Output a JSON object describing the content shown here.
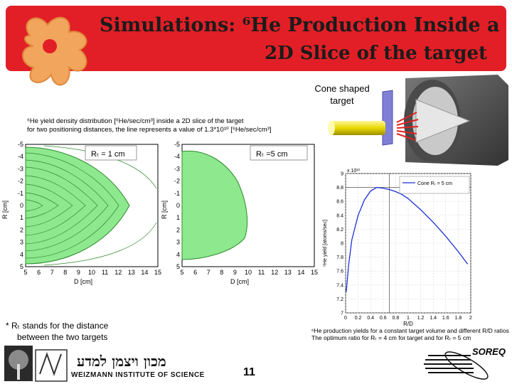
{
  "slide": {
    "title_line1": "Simulations: ⁶He Production Inside a",
    "title_line2": "2D Slice of the target",
    "cone_label": "Cone shaped target",
    "caption_line1": "⁶He yield density distribution [⁶He/sec/cm³] inside a 2D slice of the target",
    "caption_line2": "for two positioning distances, the line represents a value of 1.3*10¹⁰ [⁶He/sec/cm³]",
    "footnote_line1": "* Rₜ stands for the distance",
    "footnote_line2": "between the two targets",
    "right_caption_line1": "⁶He production yields for a constant target volume and different R/D ratios",
    "right_caption_line2": "The optimum ratio for Rₜ = 4 cm for target and for Rₜ = 5 cm",
    "page_number": "11",
    "soreq": "SOREQ",
    "weizmann_en": "WEIZMANN INSTITUTE OF SCIENCE",
    "weizmann_he": "מכון ויצמן למדע"
  },
  "plot_left": {
    "label": "Rₜ = 1 cm",
    "xlabel": "D [cm]",
    "ylabel": "R [cm]",
    "xticks": [
      "5",
      "6",
      "7",
      "8",
      "9",
      "10",
      "11",
      "12",
      "13",
      "14",
      "15"
    ],
    "yticks": [
      "-5",
      "-4",
      "-3",
      "-2",
      "-1",
      "0",
      "1",
      "2",
      "3",
      "4",
      "5"
    ]
  },
  "plot_mid": {
    "label": "Rₜ =5 cm",
    "xlabel": "D [cm]",
    "ylabel": "R [cm]",
    "xticks": [
      "5",
      "6",
      "7",
      "8",
      "9",
      "10",
      "11",
      "12",
      "13",
      "14",
      "15"
    ],
    "yticks": [
      "-5",
      "-4",
      "-3",
      "-2",
      "-1",
      "0",
      "1",
      "2",
      "3",
      "4",
      "5"
    ]
  },
  "chart_data": {
    "type": "line",
    "xlabel": "R/D",
    "ylabel": "⁶He yield [atoms/sec]",
    "y_multiplier": "x 10¹³",
    "xlim": [
      0,
      2
    ],
    "ylim": [
      7,
      9
    ],
    "xticks": [
      "0",
      "0.2",
      "0.4",
      "0.6",
      "0.8",
      "1",
      "1.2",
      "1.4",
      "1.6",
      "1.8",
      "2"
    ],
    "yticks": [
      "9",
      "8.8",
      "8.6",
      "8.4",
      "8.2",
      "8",
      "7.8",
      "7.6",
      "7.4",
      "7.2",
      "7"
    ],
    "series": [
      {
        "name": "Cone Rₜ = 5 cm",
        "x": [
          0.01,
          0.05,
          0.1,
          0.2,
          0.3,
          0.4,
          0.5,
          0.6,
          0.7,
          0.8,
          0.9,
          1.0,
          1.2,
          1.4,
          1.6,
          1.8,
          1.95
        ],
        "y": [
          7.3,
          7.7,
          8.05,
          8.4,
          8.62,
          8.75,
          8.8,
          8.79,
          8.77,
          8.74,
          8.7,
          8.64,
          8.48,
          8.3,
          8.1,
          7.88,
          7.7
        ]
      }
    ],
    "vertical_line_x": 0.7,
    "horizontal_line_y": 8.8
  }
}
